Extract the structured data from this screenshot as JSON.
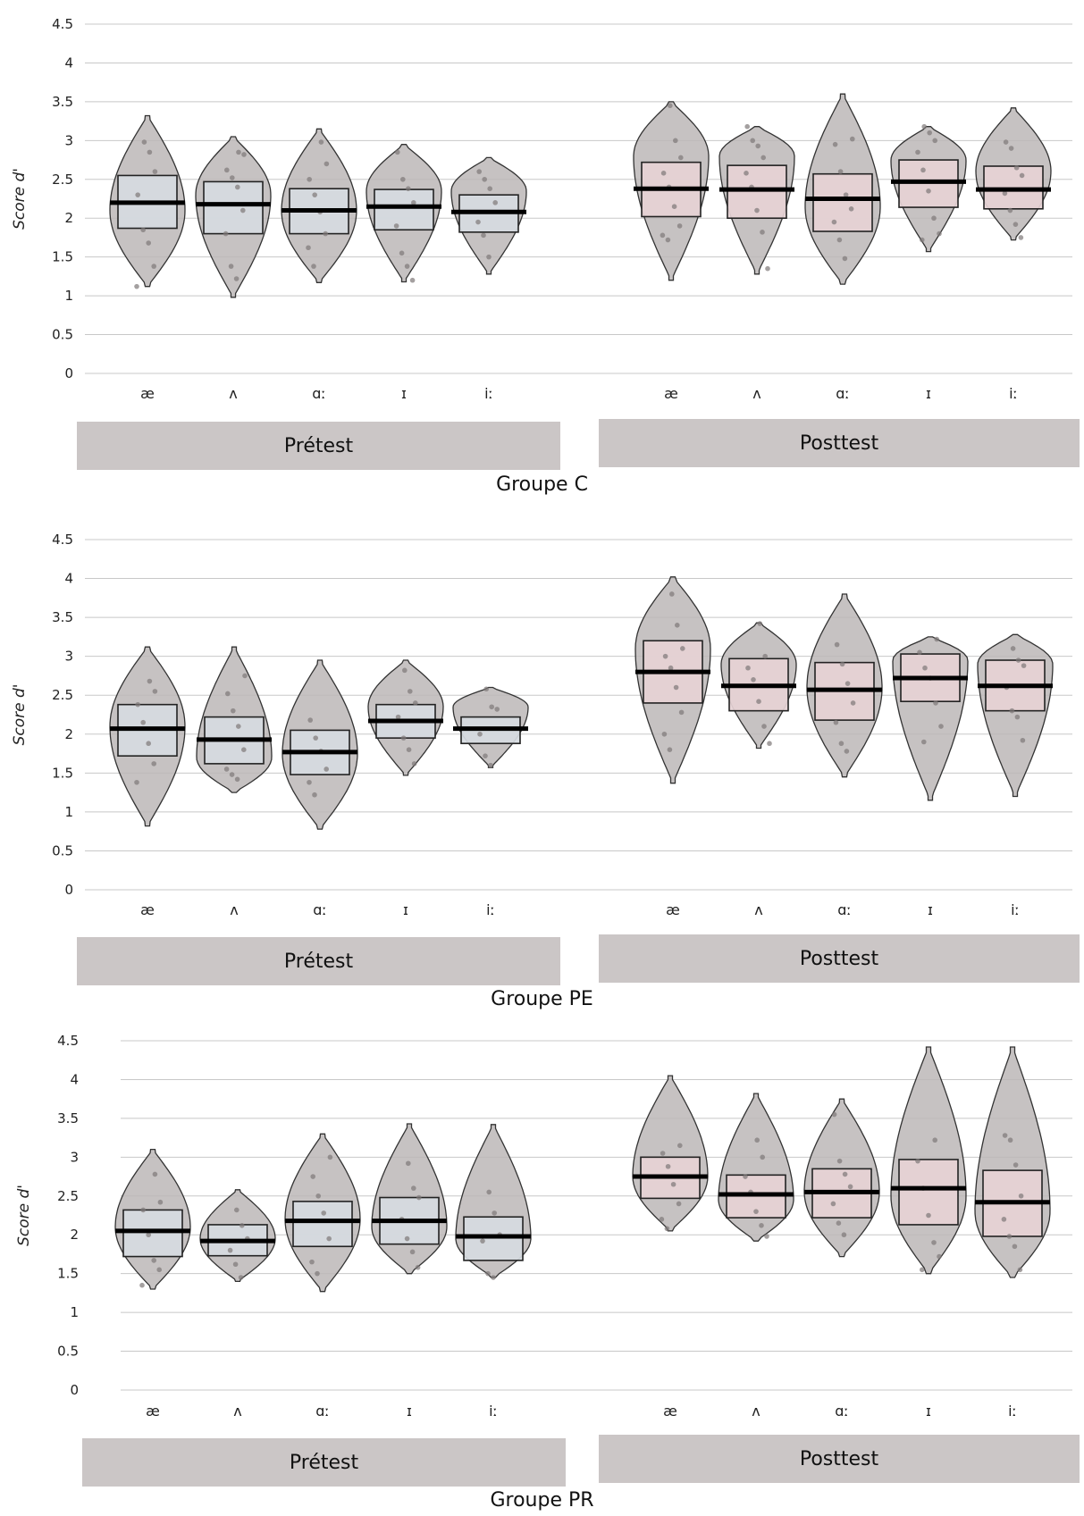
{
  "chart_data": [
    {
      "type": "violin",
      "title": "Groupe C",
      "ylabel": "Score d'",
      "ylim": [
        0,
        4.5
      ],
      "yticks": [
        "0",
        "0.5",
        "1",
        "1.5",
        "2",
        "2.5",
        "3",
        "3.5",
        "4",
        "4.5"
      ],
      "grid": true,
      "phases": [
        {
          "label": "Prétest",
          "box_color": "#d6dbe1",
          "categories": [
            {
              "label": "æ",
              "min": 1.12,
              "max": 3.32,
              "q1": 1.87,
              "q3": 2.55,
              "median": 2.2,
              "peak": 2.1,
              "points": [
                1.12,
                1.38,
                1.68,
                1.85,
                2.3,
                2.6,
                2.85,
                2.98
              ]
            },
            {
              "label": "ʌ",
              "min": 0.98,
              "max": 3.05,
              "q1": 1.8,
              "q3": 2.47,
              "median": 2.18,
              "peak": 2.3,
              "points": [
                1.22,
                1.38,
                1.8,
                2.1,
                2.4,
                2.52,
                2.62,
                2.82,
                2.85
              ]
            },
            {
              "label": "ɑː",
              "min": 1.17,
              "max": 3.15,
              "q1": 1.8,
              "q3": 2.38,
              "median": 2.1,
              "peak": 2.1,
              "points": [
                1.38,
                1.62,
                1.8,
                2.08,
                2.3,
                2.5,
                2.7,
                2.98
              ]
            },
            {
              "label": "ɪ",
              "min": 1.18,
              "max": 2.95,
              "q1": 1.85,
              "q3": 2.37,
              "median": 2.15,
              "peak": 2.35,
              "points": [
                1.2,
                1.38,
                1.55,
                1.9,
                2.2,
                2.38,
                2.5,
                2.85
              ]
            },
            {
              "label": "iː",
              "min": 1.28,
              "max": 2.78,
              "q1": 1.82,
              "q3": 2.3,
              "median": 2.08,
              "peak": 2.35,
              "points": [
                1.5,
                1.78,
                1.95,
                2.2,
                2.38,
                2.5,
                2.6
              ]
            }
          ]
        },
        {
          "label": "Posttest",
          "box_color": "#e6d3d5",
          "categories": [
            {
              "label": "æ",
              "min": 1.2,
              "max": 3.5,
              "q1": 2.02,
              "q3": 2.72,
              "median": 2.38,
              "peak": 2.8,
              "points": [
                1.72,
                1.78,
                1.9,
                2.15,
                2.4,
                2.58,
                2.78,
                3.0,
                3.45
              ]
            },
            {
              "label": "ʌ",
              "min": 1.28,
              "max": 3.18,
              "q1": 2.0,
              "q3": 2.68,
              "median": 2.37,
              "peak": 2.8,
              "points": [
                1.35,
                1.82,
                2.1,
                2.4,
                2.58,
                2.78,
                2.93,
                3.0,
                3.18
              ]
            },
            {
              "label": "ɑː",
              "min": 1.15,
              "max": 3.6,
              "q1": 1.83,
              "q3": 2.57,
              "median": 2.25,
              "peak": 2.15,
              "points": [
                1.48,
                1.72,
                1.95,
                2.12,
                2.3,
                2.6,
                2.95,
                3.02
              ]
            },
            {
              "label": "ɪ",
              "min": 1.57,
              "max": 3.18,
              "q1": 2.14,
              "q3": 2.75,
              "median": 2.47,
              "peak": 2.75,
              "points": [
                1.72,
                1.8,
                2.0,
                2.35,
                2.62,
                2.85,
                3.0,
                3.1,
                3.18
              ]
            },
            {
              "label": "iː",
              "min": 1.72,
              "max": 3.42,
              "q1": 2.12,
              "q3": 2.67,
              "median": 2.37,
              "peak": 2.6,
              "points": [
                1.75,
                1.92,
                2.1,
                2.32,
                2.55,
                2.65,
                2.9,
                2.98
              ]
            }
          ]
        }
      ]
    },
    {
      "type": "violin",
      "title": "Groupe PE",
      "ylabel": "Score d'",
      "ylim": [
        0,
        4.5
      ],
      "yticks": [
        "0",
        "0.5",
        "1",
        "1.5",
        "2",
        "2.5",
        "3",
        "3.5",
        "4",
        "4.5"
      ],
      "grid": true,
      "phases": [
        {
          "label": "Prétest",
          "box_color": "#d6dbe1",
          "categories": [
            {
              "label": "æ",
              "min": 0.82,
              "max": 3.12,
              "q1": 1.72,
              "q3": 2.38,
              "median": 2.07,
              "peak": 2.1,
              "points": [
                1.38,
                1.62,
                1.88,
                2.15,
                2.38,
                2.55,
                2.68
              ]
            },
            {
              "label": "ʌ",
              "min": 1.25,
              "max": 3.12,
              "q1": 1.62,
              "q3": 2.22,
              "median": 1.93,
              "peak": 1.7,
              "points": [
                1.42,
                1.48,
                1.55,
                1.8,
                2.1,
                2.3,
                2.52,
                2.75
              ]
            },
            {
              "label": "ɑː",
              "min": 0.78,
              "max": 2.95,
              "q1": 1.48,
              "q3": 2.05,
              "median": 1.77,
              "peak": 1.75,
              "points": [
                1.22,
                1.38,
                1.55,
                1.78,
                1.95,
                2.18
              ]
            },
            {
              "label": "ɪ",
              "min": 1.47,
              "max": 2.95,
              "q1": 1.95,
              "q3": 2.38,
              "median": 2.17,
              "peak": 2.35,
              "points": [
                1.62,
                1.8,
                1.95,
                2.22,
                2.4,
                2.55,
                2.82
              ]
            },
            {
              "label": "iː",
              "min": 1.57,
              "max": 2.6,
              "q1": 1.88,
              "q3": 2.22,
              "median": 2.07,
              "peak": 2.35,
              "points": [
                1.6,
                1.72,
                2.0,
                2.32,
                2.35,
                2.58
              ]
            }
          ]
        },
        {
          "label": "Posttest",
          "box_color": "#e6d3d5",
          "categories": [
            {
              "label": "æ",
              "min": 1.37,
              "max": 4.02,
              "q1": 2.4,
              "q3": 3.2,
              "median": 2.8,
              "peak": 3.1,
              "points": [
                1.8,
                2.0,
                2.28,
                2.6,
                2.85,
                3.0,
                3.1,
                3.4,
                3.8
              ]
            },
            {
              "label": "ʌ",
              "min": 1.82,
              "max": 3.43,
              "q1": 2.3,
              "q3": 2.97,
              "median": 2.62,
              "peak": 2.9,
              "points": [
                1.88,
                2.1,
                2.42,
                2.7,
                2.85,
                3.0,
                3.42
              ]
            },
            {
              "label": "ɑː",
              "min": 1.45,
              "max": 3.8,
              "q1": 2.18,
              "q3": 2.92,
              "median": 2.57,
              "peak": 2.6,
              "points": [
                1.78,
                1.88,
                2.15,
                2.4,
                2.65,
                2.9,
                3.15
              ]
            },
            {
              "label": "ɪ",
              "min": 1.15,
              "max": 3.25,
              "q1": 2.42,
              "q3": 3.03,
              "median": 2.72,
              "peak": 2.95,
              "points": [
                1.9,
                2.1,
                2.4,
                2.72,
                2.85,
                3.05,
                3.22
              ]
            },
            {
              "label": "iː",
              "min": 1.2,
              "max": 3.28,
              "q1": 2.3,
              "q3": 2.95,
              "median": 2.62,
              "peak": 2.9,
              "points": [
                1.92,
                2.22,
                2.3,
                2.6,
                2.88,
                2.95,
                3.1
              ]
            }
          ]
        }
      ]
    },
    {
      "type": "violin",
      "title": "Groupe PR",
      "ylabel": "Score d'",
      "ylim": [
        0,
        4.5
      ],
      "yticks": [
        "0",
        "0.5",
        "1",
        "1.5",
        "2",
        "2.5",
        "3",
        "3.5",
        "4",
        "4.5"
      ],
      "grid": true,
      "phases": [
        {
          "label": "Prétest",
          "box_color": "#d6dbe1",
          "categories": [
            {
              "label": "æ",
              "min": 1.3,
              "max": 3.1,
              "q1": 1.72,
              "q3": 2.32,
              "median": 2.05,
              "peak": 2.1,
              "points": [
                1.35,
                1.55,
                1.67,
                2.0,
                2.32,
                2.42,
                2.78
              ]
            },
            {
              "label": "ʌ",
              "min": 1.4,
              "max": 2.58,
              "q1": 1.73,
              "q3": 2.13,
              "median": 1.92,
              "peak": 1.95,
              "points": [
                1.45,
                1.62,
                1.8,
                1.95,
                2.12,
                2.32
              ]
            },
            {
              "label": "ɑː",
              "min": 1.27,
              "max": 3.3,
              "q1": 1.85,
              "q3": 2.43,
              "median": 2.18,
              "peak": 2.2,
              "points": [
                1.5,
                1.65,
                1.95,
                2.28,
                2.5,
                2.75,
                3.0
              ]
            },
            {
              "label": "ɪ",
              "min": 1.5,
              "max": 3.43,
              "q1": 1.88,
              "q3": 2.48,
              "median": 2.18,
              "peak": 2.1,
              "points": [
                1.58,
                1.78,
                1.95,
                2.2,
                2.48,
                2.6,
                2.92
              ]
            },
            {
              "label": "iː",
              "min": 1.45,
              "max": 3.42,
              "q1": 1.67,
              "q3": 2.23,
              "median": 1.98,
              "peak": 1.95,
              "points": [
                1.45,
                1.5,
                1.92,
                2.0,
                2.28,
                2.55
              ]
            }
          ]
        },
        {
          "label": "Posttest",
          "box_color": "#e6d3d5",
          "categories": [
            {
              "label": "æ",
              "min": 2.05,
              "max": 4.05,
              "q1": 2.47,
              "q3": 3.0,
              "median": 2.75,
              "peak": 2.75,
              "points": [
                2.08,
                2.2,
                2.4,
                2.65,
                2.88,
                3.05,
                3.15
              ]
            },
            {
              "label": "ʌ",
              "min": 1.92,
              "max": 3.82,
              "q1": 2.22,
              "q3": 2.77,
              "median": 2.52,
              "peak": 2.45,
              "points": [
                1.98,
                2.12,
                2.3,
                2.55,
                2.75,
                3.0,
                3.22
              ]
            },
            {
              "label": "ɑː",
              "min": 1.72,
              "max": 3.75,
              "q1": 2.22,
              "q3": 2.85,
              "median": 2.55,
              "peak": 2.55,
              "points": [
                2.0,
                2.15,
                2.4,
                2.62,
                2.78,
                2.95,
                3.55
              ]
            },
            {
              "label": "ɪ",
              "min": 1.5,
              "max": 4.42,
              "q1": 2.13,
              "q3": 2.97,
              "median": 2.6,
              "peak": 2.5,
              "points": [
                1.55,
                1.72,
                1.9,
                2.25,
                2.6,
                2.95,
                3.22
              ]
            },
            {
              "label": "iː",
              "min": 1.45,
              "max": 4.42,
              "q1": 1.98,
              "q3": 2.83,
              "median": 2.42,
              "peak": 2.3,
              "points": [
                1.55,
                1.85,
                1.98,
                2.2,
                2.5,
                2.9,
                3.22,
                3.28
              ]
            }
          ]
        }
      ]
    }
  ]
}
